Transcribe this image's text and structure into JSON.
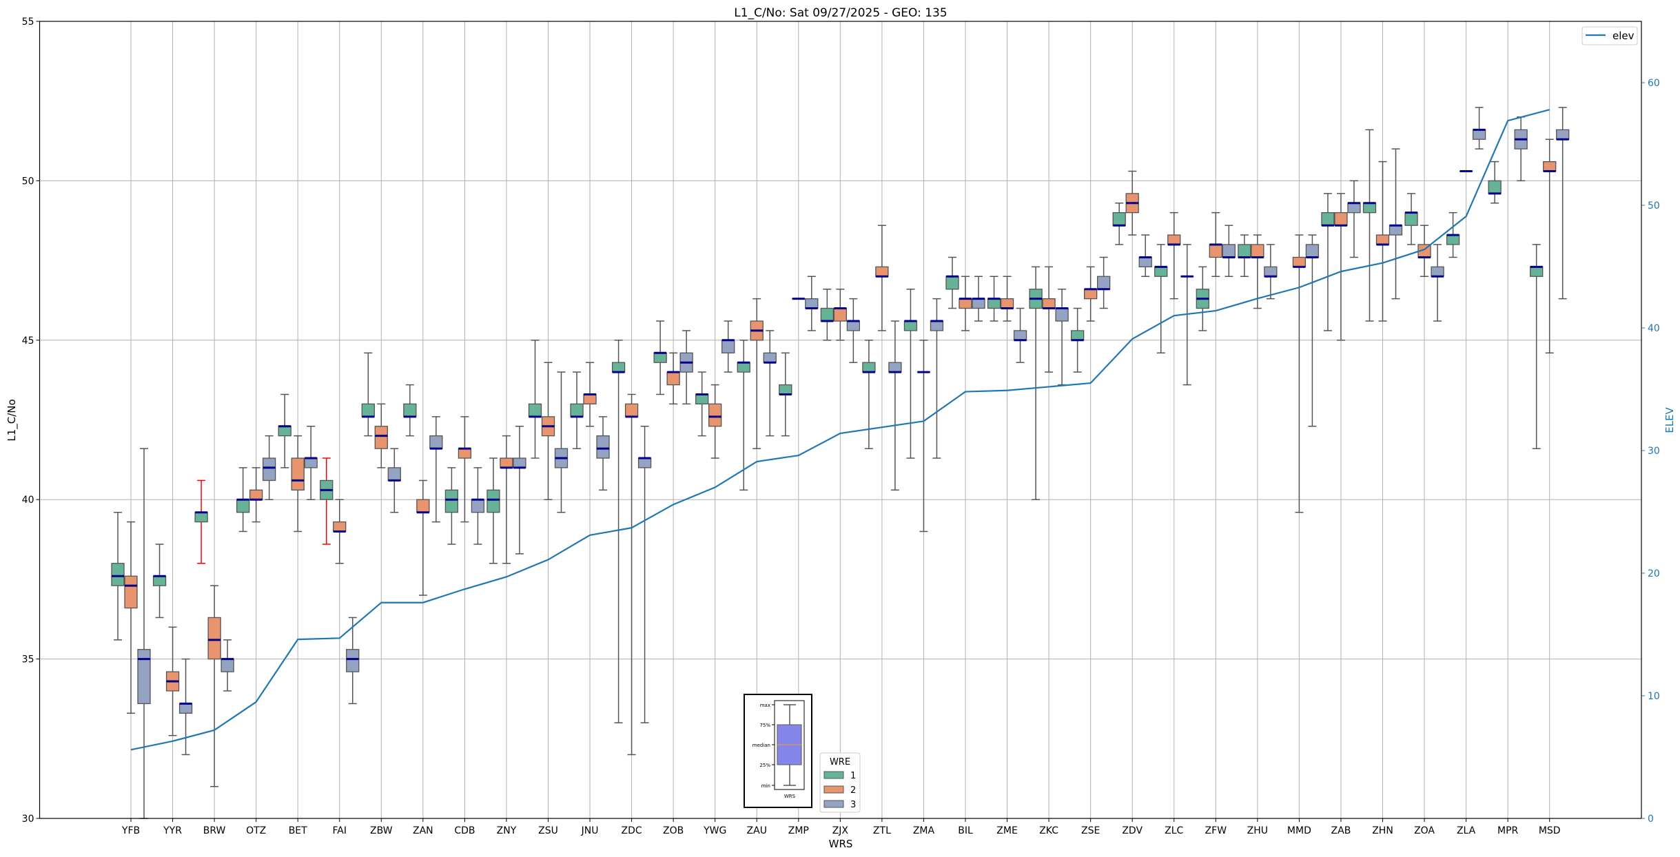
{
  "chart_data": {
    "type": "box",
    "title": "L1_C/No: Sat 09/27/2025 - GEO: 135",
    "xlabel": "WRS",
    "ylabel": "L1_C/No",
    "y2label": "ELEV",
    "ylim": [
      30,
      55
    ],
    "y2lim": [
      0,
      65
    ],
    "yticks": [
      30,
      35,
      40,
      45,
      50,
      55
    ],
    "y2ticks": [
      0,
      10,
      20,
      30,
      40,
      50,
      60
    ],
    "grid": true,
    "categories": [
      "YFB",
      "YYR",
      "BRW",
      "OTZ",
      "BET",
      "FAI",
      "ZBW",
      "ZAN",
      "CDB",
      "ZNY",
      "ZSU",
      "JNU",
      "ZDC",
      "ZOB",
      "YWG",
      "ZAU",
      "ZMP",
      "ZJX",
      "ZTL",
      "ZMA",
      "BIL",
      "ZME",
      "ZKC",
      "ZSE",
      "ZDV",
      "ZLC",
      "ZFW",
      "ZHU",
      "MMD",
      "ZAB",
      "ZHN",
      "ZOA",
      "ZLA",
      "MPR",
      "MSD"
    ],
    "legend": {
      "title": "WRE",
      "placement": "bottom-center"
    },
    "series": [
      {
        "name": "1",
        "color": "#66b398",
        "boxes": [
          [
            35.6,
            37.3,
            37.6,
            38.0,
            39.6
          ],
          [
            36.3,
            37.3,
            37.6,
            37.6,
            38.6
          ],
          [
            38.0,
            39.3,
            39.6,
            39.6,
            40.6
          ],
          [
            39.0,
            39.6,
            40.0,
            40.0,
            41.0
          ],
          [
            41.0,
            42.0,
            42.3,
            42.3,
            43.3
          ],
          [
            38.6,
            40.0,
            40.3,
            40.6,
            41.3
          ],
          [
            42.0,
            42.6,
            42.6,
            43.0,
            44.6
          ],
          [
            42.0,
            42.6,
            42.6,
            43.0,
            43.6
          ],
          [
            38.6,
            39.6,
            40.0,
            40.3,
            41.0
          ],
          [
            38.0,
            39.6,
            40.0,
            40.3,
            41.3
          ],
          [
            41.3,
            42.6,
            42.6,
            43.0,
            45.0
          ],
          [
            41.6,
            42.6,
            42.6,
            43.0,
            44.0
          ],
          [
            33.0,
            44.0,
            44.0,
            44.3,
            45.0
          ],
          [
            43.3,
            44.3,
            44.6,
            44.6,
            45.6
          ],
          [
            42.0,
            43.0,
            43.3,
            43.3,
            44.0
          ],
          [
            40.3,
            44.0,
            44.3,
            44.3,
            45.0
          ],
          [
            42.0,
            43.3,
            43.3,
            43.6,
            44.6
          ],
          [
            45.0,
            45.6,
            45.6,
            46.0,
            46.6
          ],
          [
            41.6,
            44.0,
            44.0,
            44.3,
            45.0
          ],
          [
            41.3,
            45.3,
            45.6,
            45.6,
            46.6
          ],
          [
            46.0,
            46.6,
            47.0,
            47.0,
            47.6
          ],
          [
            45.6,
            46.0,
            46.3,
            46.3,
            47.0
          ],
          [
            40.0,
            46.0,
            46.3,
            46.6,
            47.3
          ],
          [
            44.0,
            45.0,
            45.0,
            45.3,
            46.0
          ],
          [
            48.0,
            48.6,
            48.6,
            49.0,
            49.3
          ],
          [
            44.6,
            47.0,
            47.3,
            47.3,
            48.0
          ],
          [
            45.3,
            46.0,
            46.3,
            46.6,
            47.3
          ],
          [
            47.0,
            47.6,
            47.6,
            48.0,
            48.3
          ],
          null,
          [
            45.3,
            48.6,
            48.6,
            49.0,
            49.6
          ],
          [
            45.6,
            49.0,
            49.3,
            49.3,
            51.6
          ],
          [
            48.0,
            48.6,
            49.0,
            49.0,
            49.6
          ],
          [
            47.6,
            48.0,
            48.3,
            48.3,
            49.0
          ],
          [
            49.3,
            49.6,
            49.6,
            50.0,
            50.6
          ],
          [
            41.6,
            47.0,
            47.3,
            47.3,
            48.0
          ]
        ],
        "red_whiskers": [
          "BRW",
          "FAI"
        ]
      },
      {
        "name": "2",
        "color": "#e8956f",
        "boxes": [
          [
            33.3,
            36.6,
            37.3,
            37.6,
            39.3
          ],
          [
            32.6,
            34.0,
            34.3,
            34.6,
            36.0
          ],
          [
            31.0,
            35.0,
            35.6,
            36.3,
            37.3
          ],
          [
            39.3,
            40.0,
            40.0,
            40.3,
            41.0
          ],
          [
            39.0,
            40.3,
            40.6,
            41.3,
            42.0
          ],
          [
            38.0,
            39.0,
            39.0,
            39.3,
            40.0
          ],
          [
            41.0,
            41.6,
            42.0,
            42.3,
            43.0
          ],
          [
            37.0,
            39.6,
            39.6,
            40.0,
            40.6
          ],
          [
            39.3,
            41.3,
            41.6,
            41.6,
            42.6
          ],
          [
            38.0,
            41.0,
            41.0,
            41.3,
            42.0
          ],
          [
            40.0,
            42.0,
            42.3,
            42.6,
            44.3
          ],
          [
            42.3,
            43.0,
            43.3,
            43.3,
            44.3
          ],
          [
            32.0,
            42.6,
            42.6,
            43.0,
            43.3
          ],
          [
            43.0,
            43.6,
            44.0,
            44.0,
            44.6
          ],
          [
            41.3,
            42.3,
            42.6,
            43.0,
            43.6
          ],
          [
            41.6,
            45.0,
            45.3,
            45.6,
            46.3
          ],
          [
            46.3,
            46.3,
            46.3,
            46.3,
            46.3
          ],
          [
            45.0,
            45.6,
            46.0,
            46.0,
            46.6
          ],
          [
            45.3,
            47.0,
            47.0,
            47.3,
            48.6
          ],
          [
            39.0,
            44.0,
            44.0,
            44.0,
            45.0
          ],
          [
            45.3,
            46.0,
            46.3,
            46.3,
            47.0
          ],
          [
            45.6,
            46.0,
            46.0,
            46.3,
            47.0
          ],
          [
            44.0,
            46.0,
            46.0,
            46.3,
            47.3
          ],
          [
            45.6,
            46.3,
            46.6,
            46.6,
            47.3
          ],
          [
            48.3,
            49.0,
            49.3,
            49.6,
            50.3
          ],
          [
            46.3,
            48.0,
            48.0,
            48.3,
            49.0
          ],
          [
            47.0,
            47.6,
            48.0,
            48.0,
            49.0
          ],
          [
            46.0,
            47.6,
            47.6,
            48.0,
            48.3
          ],
          [
            39.6,
            47.3,
            47.3,
            47.6,
            48.3
          ],
          [
            45.0,
            48.6,
            48.6,
            49.0,
            49.6
          ],
          [
            45.6,
            48.0,
            48.0,
            48.3,
            50.6
          ],
          [
            47.0,
            47.6,
            47.6,
            48.0,
            48.6
          ],
          [
            50.3,
            50.3,
            50.3,
            50.3,
            50.3
          ],
          null,
          [
            44.6,
            50.3,
            50.3,
            50.6,
            51.3
          ]
        ]
      },
      {
        "name": "3",
        "color": "#95a3c3",
        "boxes": [
          [
            30.0,
            33.6,
            35.0,
            35.3,
            41.6
          ],
          [
            32.0,
            33.3,
            33.6,
            33.6,
            35.0
          ],
          [
            34.0,
            34.6,
            35.0,
            35.0,
            35.6
          ],
          [
            40.0,
            40.6,
            41.0,
            41.3,
            42.0
          ],
          [
            40.0,
            41.0,
            41.3,
            41.3,
            42.3
          ],
          [
            33.6,
            34.6,
            35.0,
            35.3,
            36.3
          ],
          [
            39.6,
            40.6,
            40.6,
            41.0,
            41.6
          ],
          [
            39.3,
            41.6,
            41.6,
            42.0,
            42.6
          ],
          [
            38.6,
            39.6,
            40.0,
            40.0,
            41.0
          ],
          [
            38.3,
            41.0,
            41.0,
            41.3,
            42.3
          ],
          [
            39.6,
            41.0,
            41.3,
            41.6,
            44.0
          ],
          [
            40.3,
            41.3,
            41.6,
            42.0,
            42.6
          ],
          [
            33.0,
            41.0,
            41.3,
            41.3,
            42.3
          ],
          [
            43.0,
            44.0,
            44.3,
            44.6,
            45.3
          ],
          [
            44.0,
            44.6,
            45.0,
            45.0,
            45.6
          ],
          [
            42.0,
            44.3,
            44.3,
            44.6,
            45.3
          ],
          [
            45.3,
            46.0,
            46.0,
            46.3,
            47.0
          ],
          [
            44.3,
            45.3,
            45.6,
            45.6,
            46.3
          ],
          [
            40.3,
            44.0,
            44.0,
            44.3,
            45.6
          ],
          [
            41.3,
            45.3,
            45.6,
            45.6,
            46.3
          ],
          [
            45.6,
            46.0,
            46.3,
            46.3,
            47.0
          ],
          [
            44.3,
            45.0,
            45.0,
            45.3,
            46.0
          ],
          [
            43.6,
            45.6,
            46.0,
            46.0,
            46.6
          ],
          [
            46.0,
            46.6,
            46.6,
            47.0,
            47.6
          ],
          [
            47.0,
            47.3,
            47.6,
            47.6,
            48.3
          ],
          [
            43.6,
            47.0,
            47.0,
            47.0,
            48.0
          ],
          [
            47.0,
            47.6,
            47.6,
            48.0,
            48.6
          ],
          [
            46.3,
            47.0,
            47.0,
            47.3,
            48.0
          ],
          [
            42.3,
            47.6,
            47.6,
            48.0,
            48.3
          ],
          [
            47.6,
            49.0,
            49.3,
            49.3,
            50.0
          ],
          [
            46.3,
            48.3,
            48.6,
            48.6,
            51.0
          ],
          [
            45.6,
            47.0,
            47.0,
            47.3,
            48.0
          ],
          [
            51.0,
            51.3,
            51.6,
            51.6,
            52.3
          ],
          [
            50.0,
            51.0,
            51.3,
            51.6,
            52.0
          ],
          [
            46.3,
            51.3,
            51.3,
            51.6,
            52.3
          ]
        ]
      }
    ],
    "elev": {
      "name": "elev",
      "color": "#1f77b4",
      "values": [
        5.6,
        6.3,
        7.2,
        9.5,
        14.6,
        14.7,
        17.6,
        17.6,
        18.7,
        19.7,
        21.1,
        23.1,
        23.7,
        25.6,
        27.0,
        29.1,
        29.6,
        31.4,
        31.9,
        32.4,
        34.8,
        34.9,
        35.2,
        35.5,
        39.1,
        41.0,
        41.4,
        42.4,
        43.3,
        44.6,
        45.3,
        46.4,
        49.1,
        56.9,
        57.8
      ]
    },
    "inset_legend": {
      "labels": [
        "max",
        "75%",
        "median",
        "25%",
        "min"
      ],
      "xlabel": "WRS"
    }
  }
}
